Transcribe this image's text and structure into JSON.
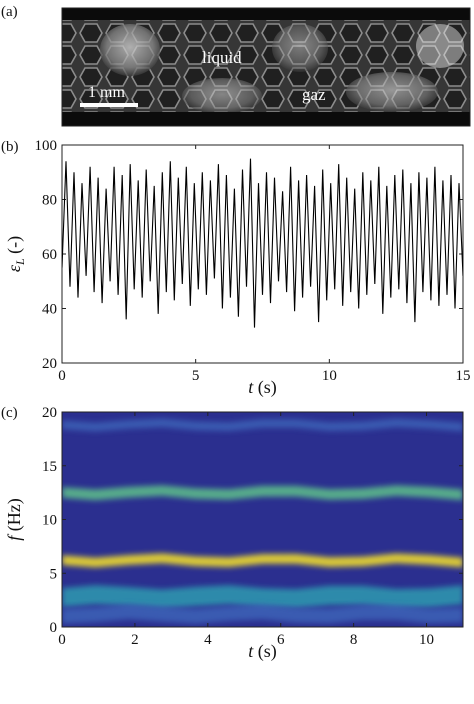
{
  "panel_labels": [
    "(a)",
    "(b)",
    "(c)"
  ],
  "photo": {
    "labels": {
      "liquid": "liquid",
      "gas": "gaz",
      "scalebar": "1 mm"
    }
  },
  "chart_data": [
    {
      "id": "b",
      "type": "line",
      "xlabel_var": "t",
      "xlabel_unit": "(s)",
      "ylabel_var": "ε",
      "ylabel_sub": "L",
      "ylabel_unit": "(-)",
      "xlim": [
        0,
        15
      ],
      "ylim": [
        20,
        100
      ],
      "xticks": [
        0,
        5,
        10,
        15
      ],
      "yticks": [
        20,
        40,
        60,
        80,
        100
      ],
      "line_color": "#000000",
      "x": [
        0.0,
        0.15,
        0.3,
        0.45,
        0.6,
        0.75,
        0.9,
        1.05,
        1.2,
        1.35,
        1.5,
        1.65,
        1.8,
        1.95,
        2.1,
        2.25,
        2.4,
        2.55,
        2.7,
        2.85,
        3.0,
        3.15,
        3.3,
        3.45,
        3.6,
        3.75,
        3.9,
        4.05,
        4.2,
        4.35,
        4.5,
        4.65,
        4.8,
        4.95,
        5.1,
        5.25,
        5.4,
        5.55,
        5.7,
        5.85,
        6.0,
        6.15,
        6.3,
        6.45,
        6.6,
        6.75,
        6.9,
        7.05,
        7.2,
        7.35,
        7.5,
        7.65,
        7.8,
        7.95,
        8.1,
        8.25,
        8.4,
        8.55,
        8.7,
        8.85,
        9.0,
        9.15,
        9.3,
        9.45,
        9.6,
        9.75,
        9.9,
        10.05,
        10.2,
        10.35,
        10.5,
        10.65,
        10.8,
        10.95,
        11.1,
        11.25,
        11.4,
        11.55,
        11.7,
        11.85,
        12.0,
        12.15,
        12.3,
        12.45,
        12.6,
        12.75,
        12.9,
        13.05,
        13.2,
        13.35,
        13.5,
        13.65,
        13.8,
        13.95,
        14.1,
        14.25,
        14.4,
        14.55,
        14.7,
        14.85,
        15.0
      ],
      "y": [
        55,
        94,
        48,
        90,
        44,
        86,
        52,
        92,
        46,
        88,
        42,
        84,
        50,
        92,
        45,
        89,
        36,
        93,
        47,
        87,
        44,
        91,
        50,
        85,
        38,
        90,
        46,
        94,
        43,
        88,
        49,
        92,
        41,
        86,
        47,
        90,
        45,
        87,
        51,
        93,
        40,
        89,
        44,
        84,
        37,
        91,
        48,
        95,
        33,
        86,
        45,
        90,
        42,
        88,
        50,
        83,
        46,
        92,
        39,
        87,
        44,
        89,
        48,
        85,
        35,
        91,
        43,
        86,
        47,
        93,
        41,
        88,
        46,
        84,
        40,
        90,
        45,
        87,
        49,
        92,
        38,
        85,
        44,
        89,
        47,
        91,
        42,
        86,
        35,
        90,
        46,
        88,
        43,
        92,
        41,
        87,
        45,
        89,
        40,
        86,
        52
      ]
    },
    {
      "id": "c",
      "type": "heatmap",
      "xlabel_var": "t",
      "xlabel_unit": "(s)",
      "ylabel_var": "f",
      "ylabel_unit": "(Hz)",
      "xlim": [
        0,
        11
      ],
      "ylim": [
        0,
        20
      ],
      "xticks": [
        0,
        2,
        4,
        6,
        8,
        10
      ],
      "yticks": [
        0,
        5,
        10,
        15,
        20
      ],
      "background_color": "#2b2f8f",
      "bands": [
        {
          "f": 6.2,
          "intensity": 1.0,
          "width": 0.45
        },
        {
          "f": 12.5,
          "intensity": 0.55,
          "width": 0.5
        },
        {
          "f": 18.8,
          "intensity": 0.3,
          "width": 0.4
        },
        {
          "f": 2.8,
          "intensity": 0.4,
          "width": 0.9
        },
        {
          "f": 1.2,
          "intensity": 0.35,
          "width": 0.7
        }
      ]
    }
  ]
}
